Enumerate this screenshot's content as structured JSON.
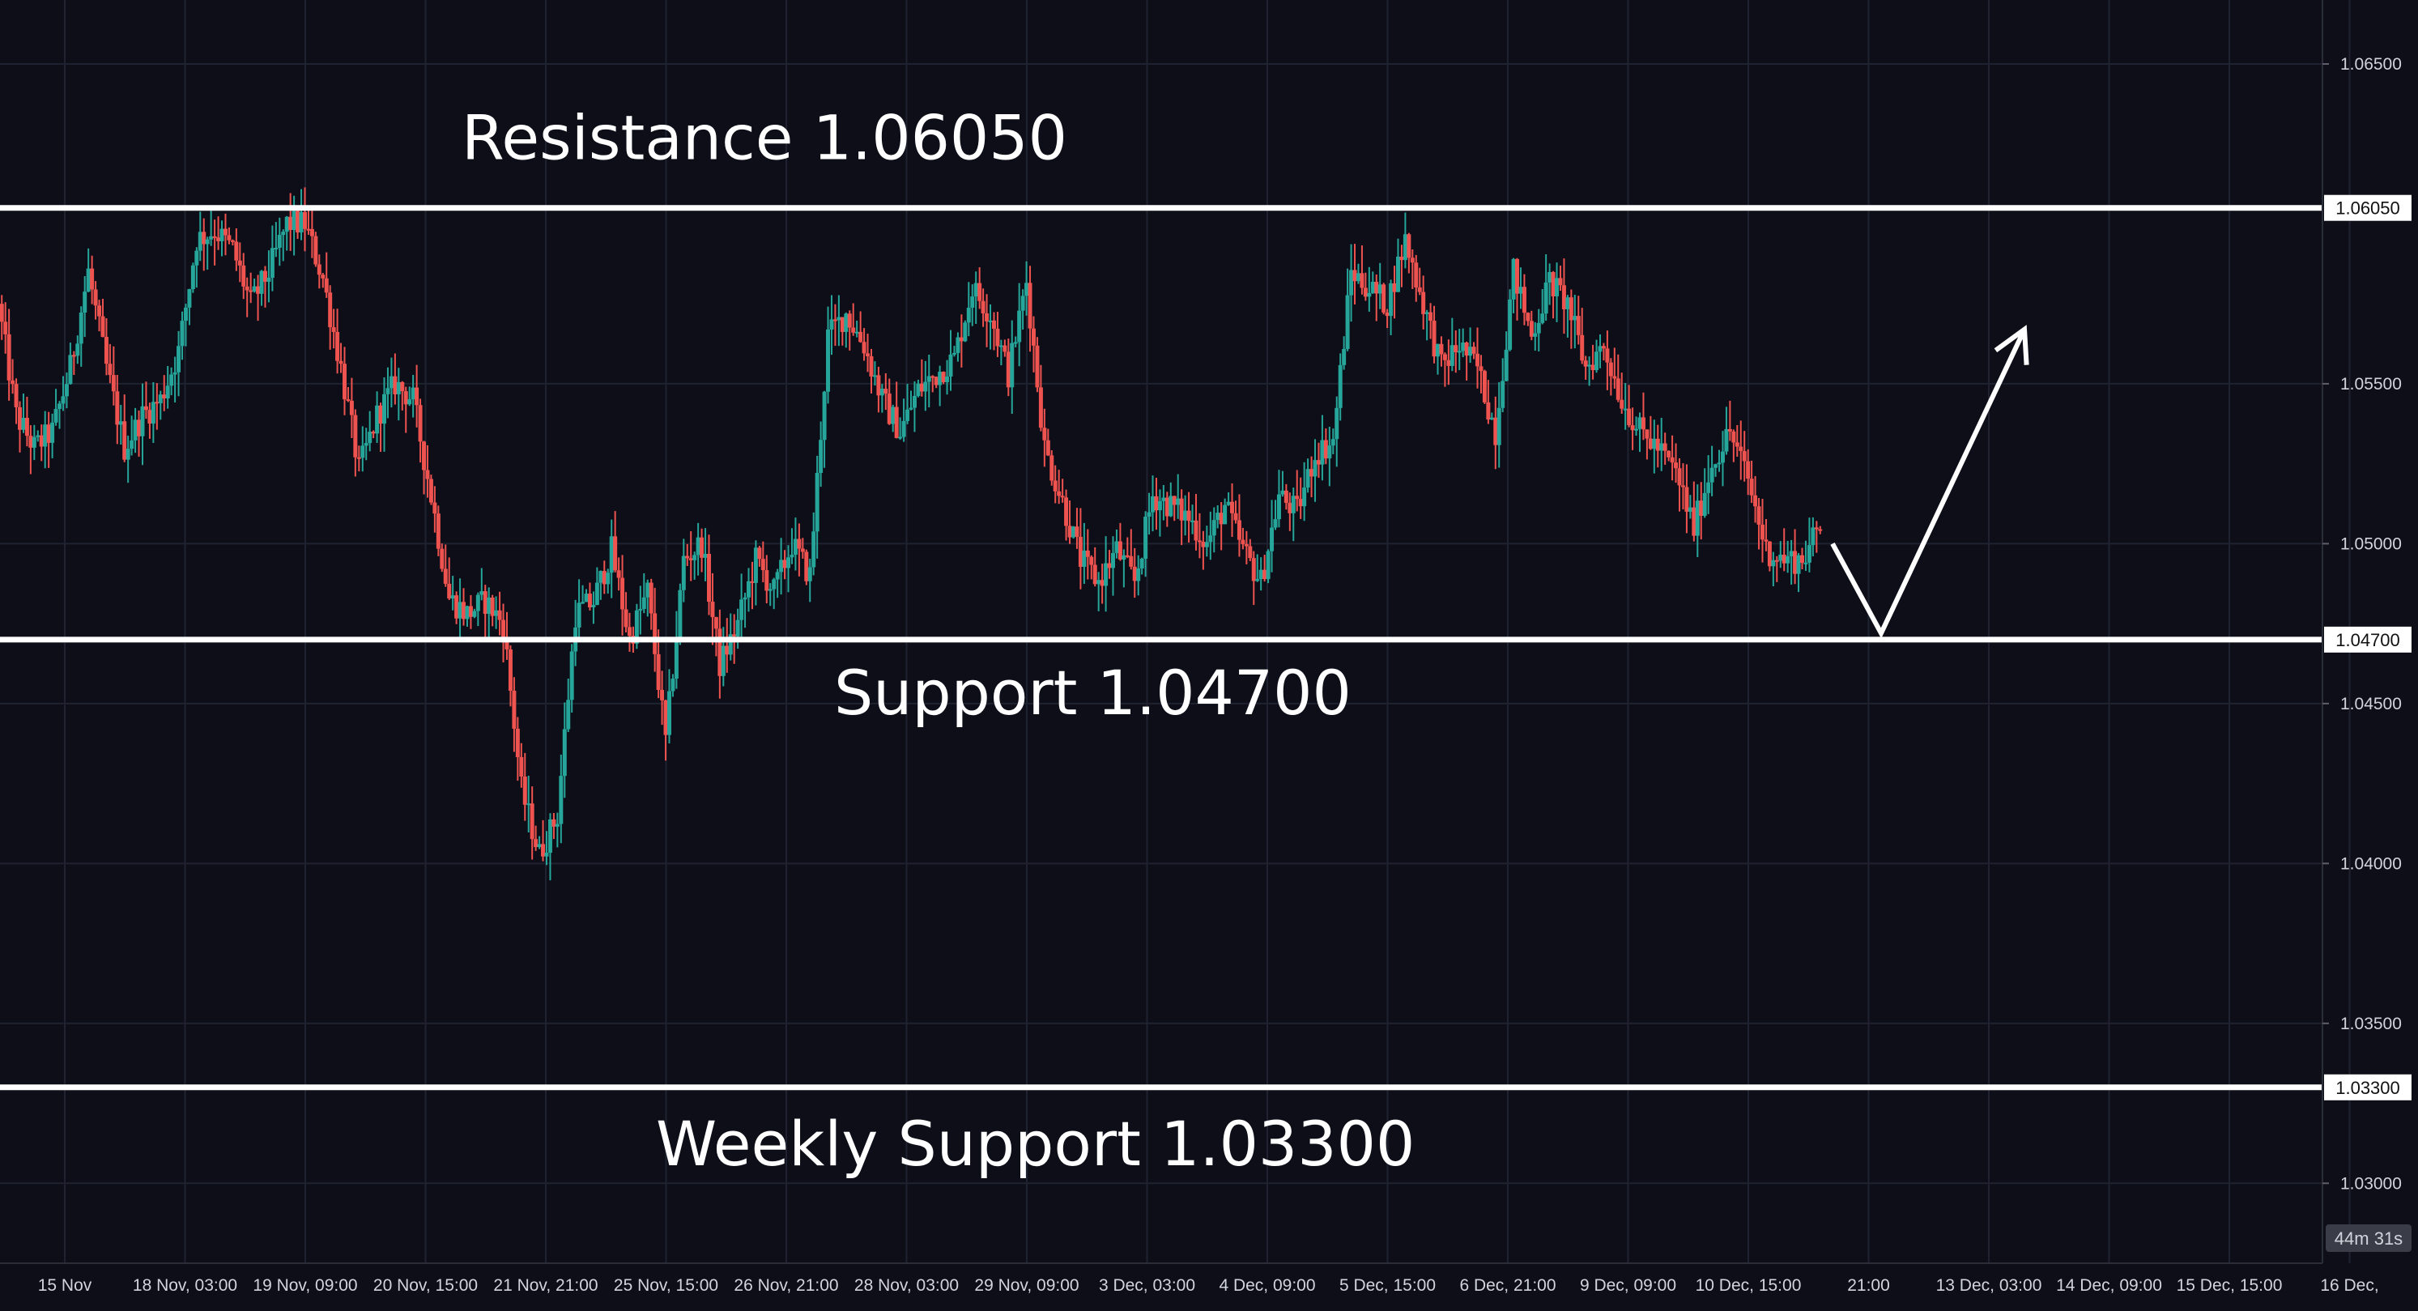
{
  "colors": {
    "background": "#0d0e17",
    "grid": "#1f2230",
    "up_candle": "#26a69a",
    "down_candle": "#ef5350",
    "level_line": "#ffffff",
    "axis_text": "#d1d4dc"
  },
  "chart_data": {
    "type": "candlestick",
    "instrument_timeframe": "1H",
    "ylim": [
      1.0275,
      1.067
    ],
    "y_ticks": [
      "1.06500",
      "1.05500",
      "1.05000",
      "1.04500",
      "1.04000",
      "1.03500",
      "1.03000"
    ],
    "x_ticks": [
      "15 Nov",
      "18 Nov, 03:00",
      "19 Nov, 09:00",
      "20 Nov, 15:00",
      "21 Nov, 21:00",
      "25 Nov, 15:00",
      "26 Nov, 21:00",
      "28 Nov, 03:00",
      "29 Nov, 09:00",
      "3 Dec, 03:00",
      "4 Dec, 09:00",
      "5 Dec, 15:00",
      "6 Dec, 21:00",
      "9 Dec, 09:00",
      "10 Dec, 15:00",
      "21:00",
      "13 Dec, 03:00",
      "14 Dec, 09:00",
      "15 Dec, 15:00",
      "16 Dec,"
    ],
    "levels": [
      {
        "value": 1.0605,
        "tag": "1.06050",
        "annotation": "Resistance 1.06050"
      },
      {
        "value": 1.047,
        "tag": "1.04700",
        "annotation": "Support 1.04700"
      },
      {
        "value": 1.033,
        "tag": "1.03300",
        "annotation": "Weekly Support 1.03300"
      }
    ],
    "price_path": [
      1.0575,
      1.054,
      1.053,
      1.0535,
      1.0555,
      1.0585,
      1.0555,
      1.053,
      1.054,
      1.0545,
      1.056,
      1.0595,
      1.0598,
      1.0592,
      1.0575,
      1.0585,
      1.06,
      1.06,
      1.0583,
      1.0555,
      1.0523,
      1.054,
      1.055,
      1.0545,
      1.0515,
      1.0483,
      1.0478,
      1.0482,
      1.0475,
      1.0423,
      1.0403,
      1.0415,
      1.0478,
      1.0482,
      1.0498,
      1.047,
      1.0485,
      1.0438,
      1.0495,
      1.05,
      1.0462,
      1.0475,
      1.0495,
      1.0485,
      1.05,
      1.049,
      1.0565,
      1.0572,
      1.0562,
      1.0545,
      1.0535,
      1.0548,
      1.0553,
      1.0558,
      1.058,
      1.0572,
      1.0553,
      1.0582,
      1.053,
      1.0513,
      1.0495,
      1.0488,
      1.0498,
      1.0488,
      1.0515,
      1.0512,
      1.0508,
      1.05,
      1.0512,
      1.0498,
      1.0488,
      1.0515,
      1.051,
      1.0528,
      1.0532,
      1.0585,
      1.058,
      1.0575,
      1.0595,
      1.0575,
      1.0555,
      1.0562,
      1.0555,
      1.0535,
      1.0585,
      1.0565,
      1.0582,
      1.0575,
      1.0555,
      1.0562,
      1.0545,
      1.0535,
      1.053,
      1.0522,
      1.0505,
      1.0525,
      1.0535,
      1.052,
      1.0498,
      1.0495,
      1.0495,
      1.0505
    ],
    "timer": "44m 31s"
  },
  "arrow_path": [
    1.05,
    1.0472,
    1.0567
  ]
}
